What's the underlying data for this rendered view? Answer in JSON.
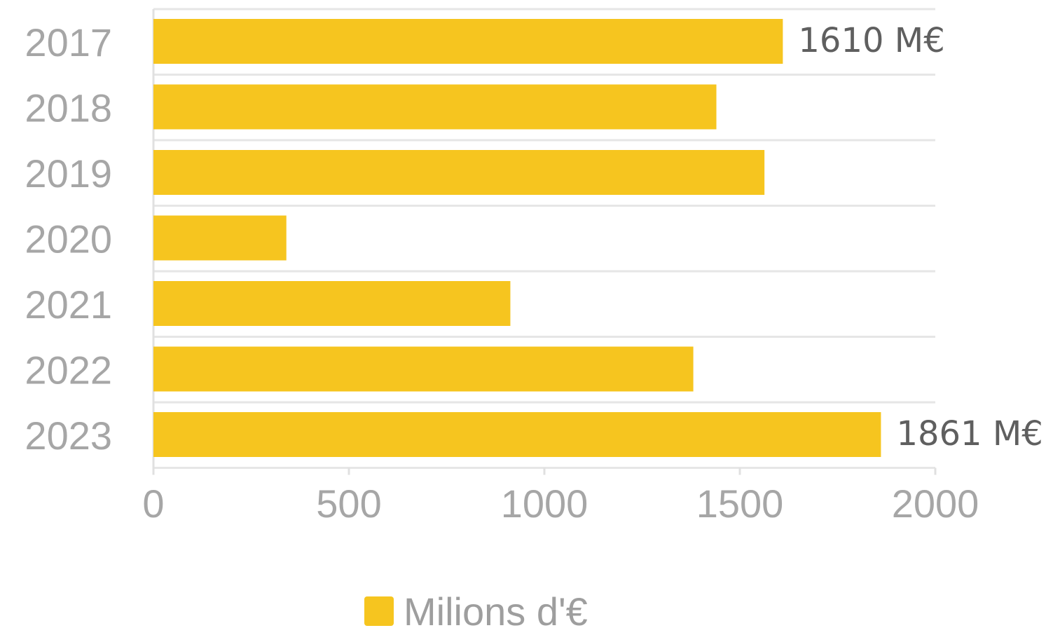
{
  "chart_data": {
    "type": "bar",
    "orientation": "horizontal",
    "categories": [
      "2017",
      "2018",
      "2019",
      "2020",
      "2021",
      "2022",
      "2023"
    ],
    "series": [
      {
        "name": "Milions d'€",
        "values": [
          1610,
          1440,
          1563,
          340,
          913,
          1381,
          1861
        ],
        "color": "#f6c51f"
      }
    ],
    "data_labels": [
      {
        "category": "2017",
        "text": "1610 M€"
      },
      {
        "category": "2023",
        "text": "1861 M€"
      }
    ],
    "xticks": [
      "0",
      "500",
      "1000",
      "1500",
      "2000"
    ],
    "xlim": [
      0,
      2000
    ],
    "grid": true,
    "legend_position": "bottom"
  }
}
